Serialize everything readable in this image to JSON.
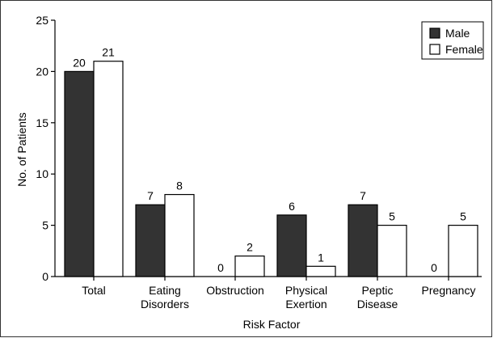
{
  "chart_data": {
    "type": "bar",
    "xlabel": "Risk Factor",
    "ylabel": "No. of Patients",
    "ylim": [
      0,
      25
    ],
    "yticks": [
      0,
      5,
      10,
      15,
      20,
      25
    ],
    "categories": [
      [
        "Total"
      ],
      [
        "Eating",
        "Disorders"
      ],
      [
        "Obstruction"
      ],
      [
        "Physical",
        "Exertion"
      ],
      [
        "Peptic",
        "Disease"
      ],
      [
        "Pregnancy"
      ]
    ],
    "series": [
      {
        "name": "Male",
        "color": "#333333",
        "values": [
          20,
          7,
          0,
          6,
          7,
          0
        ]
      },
      {
        "name": "Female",
        "color": "#ffffff",
        "values": [
          21,
          8,
          2,
          1,
          5,
          5
        ]
      }
    ],
    "legend_position": "top-right",
    "grid": false
  }
}
